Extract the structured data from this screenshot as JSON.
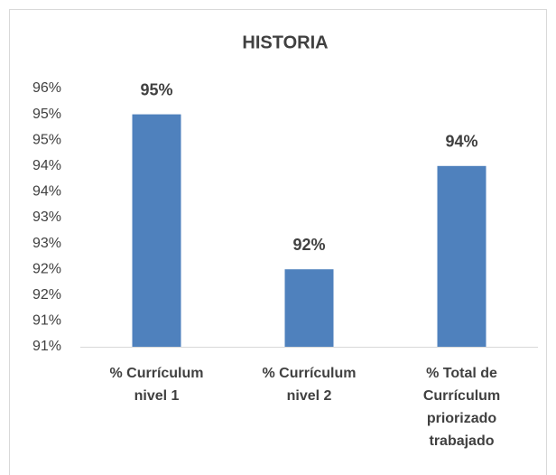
{
  "chart_data": {
    "type": "bar",
    "title": "HISTORIA",
    "categories": [
      "% Currículum nivel 1",
      "% Currículum nivel 2",
      "% Total de Currículum priorizado trabajado"
    ],
    "values": [
      95,
      92,
      94
    ],
    "value_labels": [
      "95%",
      "92%",
      "94%"
    ],
    "color": "#4f81bd",
    "ylim": [
      90.5,
      95.5
    ],
    "yticks": [
      {
        "value": 90.5,
        "label": "91%"
      },
      {
        "value": 91,
        "label": "91%"
      },
      {
        "value": 91.5,
        "label": "92%"
      },
      {
        "value": 92,
        "label": "92%"
      },
      {
        "value": 92.5,
        "label": "93%"
      },
      {
        "value": 93,
        "label": "93%"
      },
      {
        "value": 93.5,
        "label": "94%"
      },
      {
        "value": 94,
        "label": "94%"
      },
      {
        "value": 94.5,
        "label": "95%"
      },
      {
        "value": 95,
        "label": "95%"
      },
      {
        "value": 95.5,
        "label": "96%"
      }
    ],
    "grid": false
  }
}
